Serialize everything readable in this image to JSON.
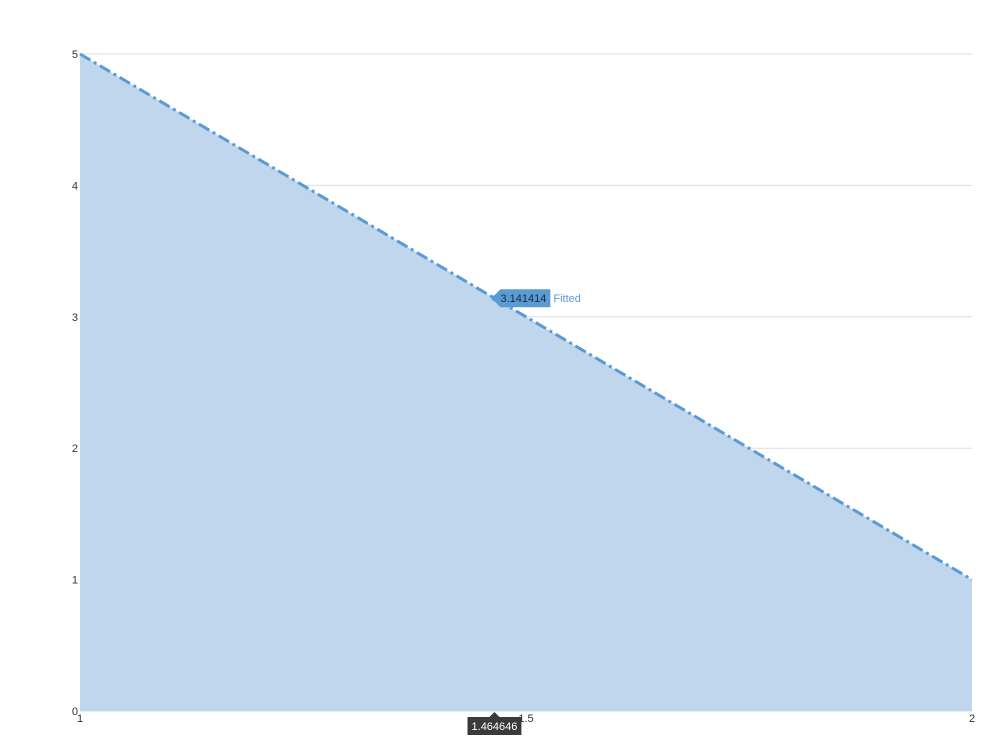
{
  "chart_data": {
    "type": "area",
    "title": "",
    "xlabel": "",
    "ylabel": "",
    "xlim": [
      1,
      2
    ],
    "ylim": [
      0,
      5
    ],
    "x_ticks": [
      1,
      1.5,
      2
    ],
    "y_ticks": [
      0,
      1,
      2,
      3,
      4,
      5
    ],
    "grid": "horizontal",
    "series": [
      {
        "name": "Fitted",
        "x": [
          1,
          2
        ],
        "y": [
          5,
          1
        ]
      }
    ],
    "crosshair": {
      "x": 1.464646,
      "x_label": "1.464646",
      "y": 3.141414,
      "y_label": "3.141414",
      "series_label": "Fitted"
    },
    "colors": {
      "area_fill": "#c0d6ed",
      "line": "#5b9bd5",
      "grid": "#dddddd",
      "x_tooltip_bg": "#3a3a3a",
      "y_tooltip_bg": "#5b9bd5"
    }
  }
}
